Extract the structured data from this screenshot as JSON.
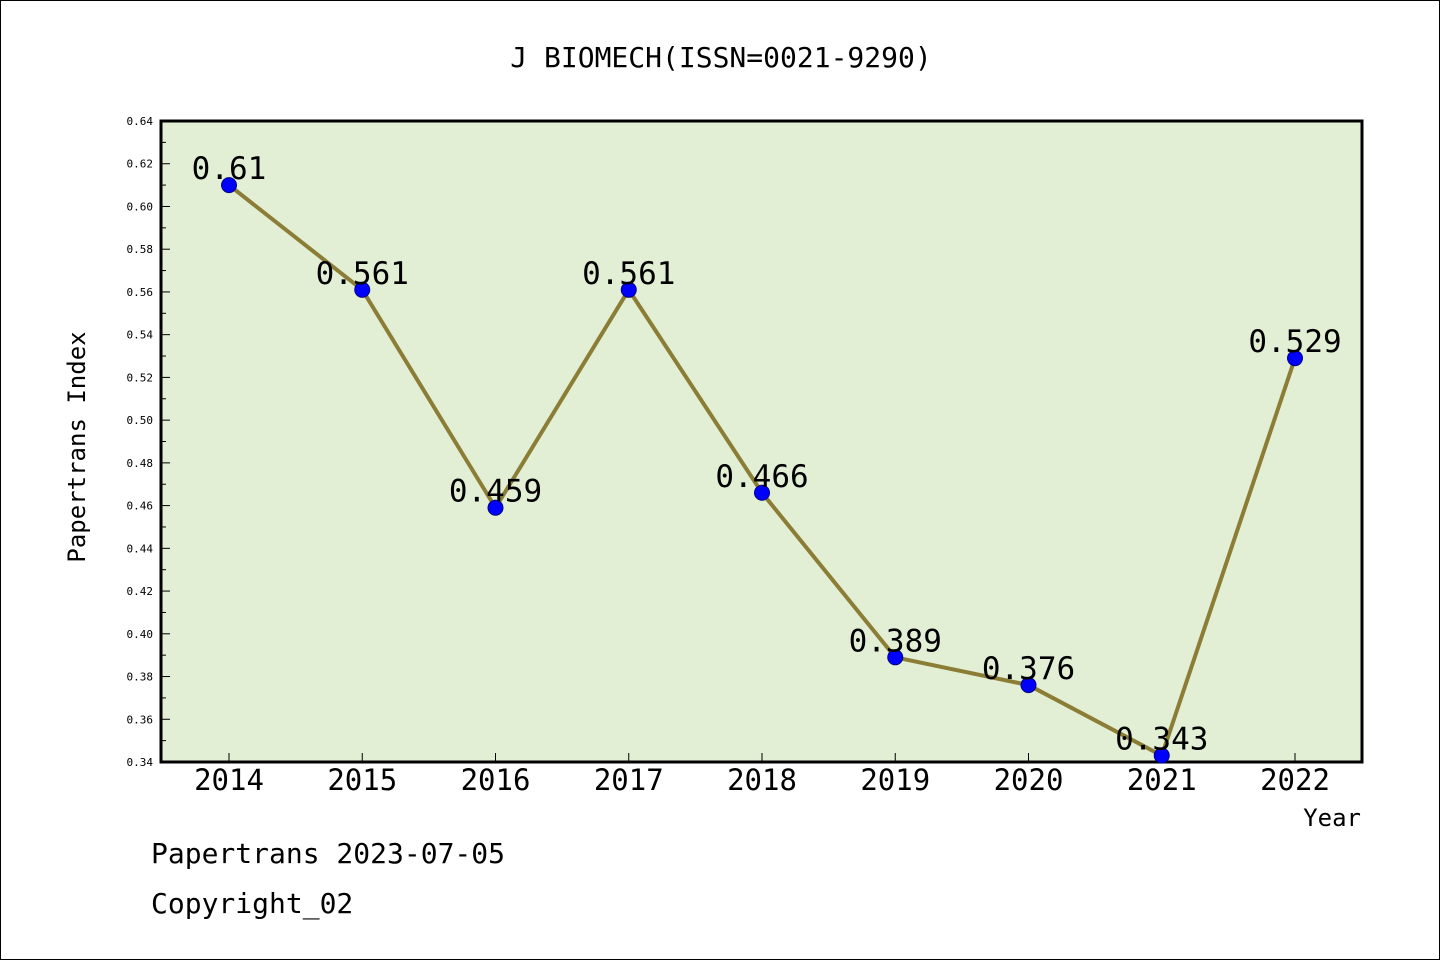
{
  "chart_data": {
    "type": "line",
    "title": "J BIOMECH(ISSN=0021-9290)",
    "xlabel": "Year",
    "ylabel": "Papertrans Index",
    "categories": [
      "2014",
      "2015",
      "2016",
      "2017",
      "2018",
      "2019",
      "2020",
      "2021",
      "2022"
    ],
    "series": [
      {
        "values": [
          0.61,
          0.561,
          0.459,
          0.561,
          0.466,
          0.389,
          0.376,
          0.343,
          0.529
        ],
        "labels": [
          "0.61",
          "0.561",
          "0.459",
          "0.561",
          "0.466",
          "0.389",
          "0.376",
          "0.343",
          "0.529"
        ]
      }
    ],
    "ylim": [
      0.34,
      0.64
    ],
    "yticks": [
      "0.34",
      "0.36",
      "0.38",
      "0.40",
      "0.42",
      "0.44",
      "0.46",
      "0.48",
      "0.50",
      "0.52",
      "0.54",
      "0.56",
      "0.58",
      "0.60",
      "0.62",
      "0.64"
    ],
    "grid": false,
    "colors": {
      "plot_background": "#e2efd5",
      "line": "#8b7d35",
      "marker": "#0000ff",
      "axes": "#000000"
    }
  },
  "footer": {
    "source": "Papertrans 2023-07-05",
    "copyright": "Copyright_02"
  }
}
